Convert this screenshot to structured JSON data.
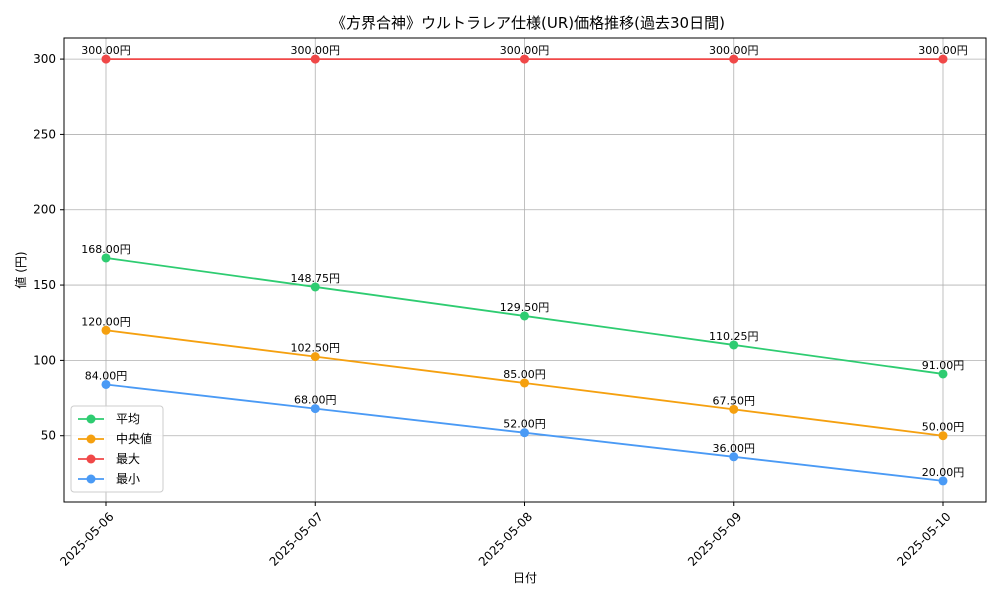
{
  "chart_data": {
    "type": "line",
    "title": "《方界合神》ウルトラレア仕様(UR)価格推移(過去30日間)",
    "xlabel": "日付",
    "ylabel": "値 (円)",
    "categories": [
      "2025-05-06",
      "2025-05-07",
      "2025-05-08",
      "2025-05-09",
      "2025-05-10"
    ],
    "ylim": [
      6,
      314
    ],
    "yticks": [
      50,
      100,
      150,
      200,
      250,
      300
    ],
    "grid": true,
    "legend_position": "lower-left",
    "series": [
      {
        "name": "平均",
        "color": "#2ecc71",
        "values": [
          168.0,
          148.75,
          129.5,
          110.25,
          91.0
        ],
        "labels": [
          "168.00円",
          "148.75円",
          "129.50円",
          "110.25円",
          "91.00円"
        ]
      },
      {
        "name": "中央値",
        "color": "#f5a00f",
        "values": [
          120.0,
          102.5,
          85.0,
          67.5,
          50.0
        ],
        "labels": [
          "120.00円",
          "102.50円",
          "85.00円",
          "67.50円",
          "50.00円"
        ]
      },
      {
        "name": "最大",
        "color": "#f04848",
        "values": [
          300.0,
          300.0,
          300.0,
          300.0,
          300.0
        ],
        "labels": [
          "300.00円",
          "300.00円",
          "300.00円",
          "300.00円",
          "300.00円"
        ]
      },
      {
        "name": "最小",
        "color": "#4a9af5",
        "values": [
          84.0,
          68.0,
          52.0,
          36.0,
          20.0
        ],
        "labels": [
          "84.00円",
          "68.00円",
          "52.00円",
          "36.00円",
          "20.00円"
        ]
      }
    ]
  }
}
